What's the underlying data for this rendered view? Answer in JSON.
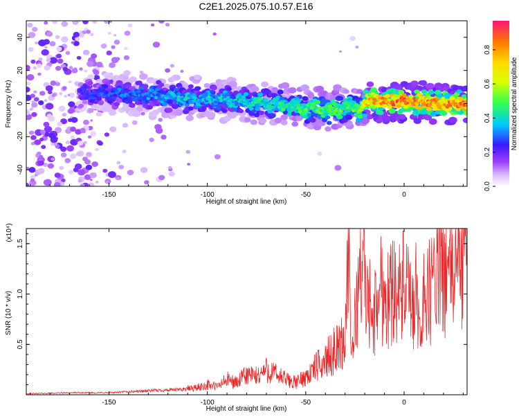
{
  "title": "C2E1.2025.075.10.57.E16",
  "chart_data": [
    {
      "type": "heatmap",
      "xlabel": "Height of straight line (km)",
      "ylabel": "Frequency (Hz)",
      "xlim": [
        -192,
        32
      ],
      "ylim": [
        -50,
        50
      ],
      "xticks": [
        -150,
        -100,
        -50,
        0
      ],
      "yticks": [
        -40,
        -20,
        0,
        20,
        40
      ],
      "colorbar": {
        "label": "Normalized spectral amplitude",
        "range": [
          0,
          0.97
        ],
        "ticks": [
          0.0,
          0.2,
          0.4,
          0.6,
          0.8
        ]
      },
      "ridge": {
        "x": [
          -165,
          -150,
          -130,
          -110,
          -90,
          -70,
          -50,
          -35,
          -28,
          -22,
          -18,
          -10,
          0,
          10,
          20,
          32
        ],
        "freq": [
          6,
          6,
          5,
          3,
          2,
          0,
          -3,
          -4,
          -2,
          -3,
          2,
          1,
          1,
          1,
          0,
          0
        ],
        "amplitude": [
          0.25,
          0.3,
          0.35,
          0.4,
          0.4,
          0.45,
          0.5,
          0.55,
          0.5,
          0.6,
          0.8,
          0.9,
          0.9,
          0.85,
          0.9,
          0.9
        ]
      }
    },
    {
      "type": "line",
      "xlabel": "Height of straight line (km)",
      "ylabel": "SNR (10 * v/v)",
      "y_multiplier": "(x10⁴)",
      "xlim": [
        -192,
        32
      ],
      "ylim": [
        0,
        1.65
      ],
      "xticks": [
        -150,
        -100,
        -50,
        0
      ],
      "yticks": [
        0.5,
        1.0,
        1.5
      ],
      "ytick_labels": [
        "0.5",
        "1.0",
        "1.5"
      ],
      "line_color": "#e8282a",
      "series": [
        {
          "x": [
            -192,
            -170,
            -150,
            -130,
            -115,
            -110,
            -105,
            -100,
            -95,
            -90,
            -85,
            -80,
            -75,
            -70,
            -65,
            -60,
            -55,
            -50,
            -47,
            -45,
            -42,
            -40,
            -37,
            -35,
            -32,
            -30,
            -28.5,
            -27,
            -25,
            -22,
            -20,
            -19.5,
            -18,
            -16,
            -14,
            -12,
            -10,
            -8,
            -6,
            -4,
            -2,
            0,
            2,
            4,
            6,
            8,
            10,
            12,
            14,
            16,
            18,
            20,
            22,
            24,
            26,
            28,
            30,
            32
          ],
          "y": [
            0.01,
            0.02,
            0.02,
            0.04,
            0.05,
            0.06,
            0.07,
            0.1,
            0.08,
            0.15,
            0.12,
            0.2,
            0.18,
            0.25,
            0.2,
            0.15,
            0.12,
            0.18,
            0.22,
            0.28,
            0.3,
            0.35,
            0.4,
            0.45,
            0.5,
            0.55,
            1.55,
            0.4,
            0.7,
            1.4,
            1.65,
            0.7,
            1.0,
            0.7,
            0.9,
            1.1,
            1.0,
            0.95,
            1.05,
            1.15,
            0.95,
            1.1,
            1.0,
            0.75,
            1.05,
            0.5,
            1.15,
            0.95,
            1.1,
            1.2,
            1.25,
            1.2,
            1.3,
            1.15,
            1.35,
            1.3,
            1.42,
            1.38
          ]
        }
      ]
    }
  ]
}
